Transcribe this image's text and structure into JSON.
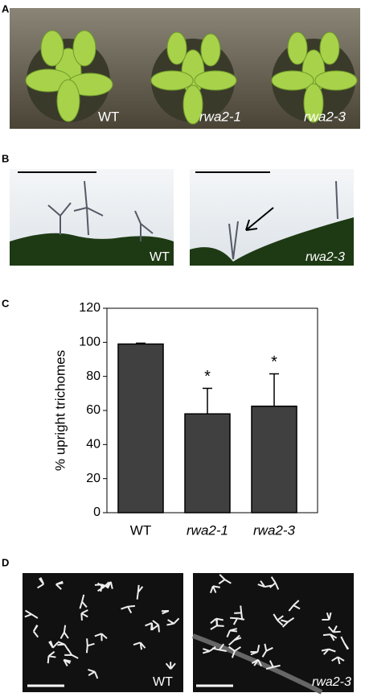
{
  "panels": {
    "a": {
      "label": "A",
      "captions": [
        "WT",
        "rwa2-1",
        "rwa2-3"
      ]
    },
    "b": {
      "label": "B",
      "captions": [
        "WT",
        "rwa2-3"
      ]
    },
    "c": {
      "label": "C"
    },
    "d": {
      "label": "D",
      "captions": [
        "WT",
        "rwa2-3"
      ]
    }
  },
  "chart_data": {
    "type": "bar",
    "y_label": "% upright trichomes",
    "categories": [
      "WT",
      "rwa2-1",
      "rwa2-3"
    ],
    "category_styles": [
      "normal",
      "italic",
      "italic"
    ],
    "values": [
      99,
      58,
      62.5
    ],
    "errors": [
      0.5,
      15,
      19
    ],
    "annotations": [
      {
        "category": 1,
        "text": "*"
      },
      {
        "category": 2,
        "text": "*"
      }
    ],
    "color": "#404040",
    "ylim": [
      0,
      120
    ],
    "yticks": [
      0,
      20,
      40,
      60,
      80,
      100,
      120
    ],
    "grid": false
  }
}
